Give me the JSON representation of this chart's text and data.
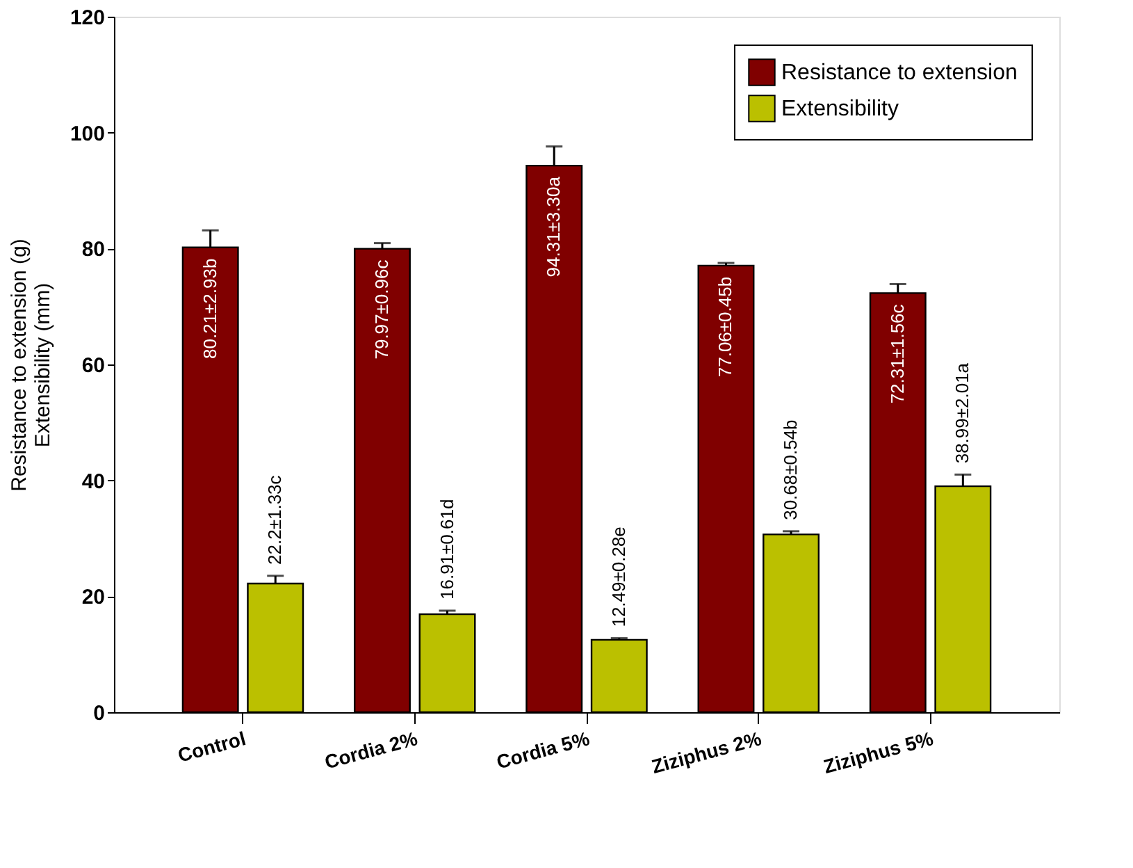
{
  "chart_data": {
    "type": "bar",
    "ylabel": "Resistance to extension (g)\nExtensibility (mm)",
    "categories": [
      "Control",
      "Cordia 2%",
      "Cordia 5%",
      "Ziziphus 2%",
      "Ziziphus 5%"
    ],
    "series": [
      {
        "name": "Resistance to extension",
        "color": "#800000",
        "values": [
          80.21,
          79.97,
          94.31,
          77.06,
          72.31
        ],
        "errors": [
          2.93,
          0.96,
          3.3,
          0.45,
          1.56
        ],
        "value_labels": [
          "80.21±2.93b",
          "79.97±0.96c",
          "94.31±3.30a",
          "77.06±0.45b",
          "72.31±1.56c"
        ]
      },
      {
        "name": "Extensibility",
        "color": "#bbc000",
        "values": [
          22.2,
          16.91,
          12.49,
          30.68,
          38.99
        ],
        "errors": [
          1.33,
          0.61,
          0.28,
          0.54,
          2.01
        ],
        "value_labels": [
          "22.2±1.33c",
          "16.91±0.61d",
          "12.49±0.28e",
          "30.68±0.54b",
          "38.99±2.01a"
        ]
      }
    ],
    "ylim": [
      0,
      120
    ],
    "yticks": [
      0,
      20,
      40,
      60,
      80,
      100,
      120
    ],
    "legend": "top right",
    "grid": false
  }
}
